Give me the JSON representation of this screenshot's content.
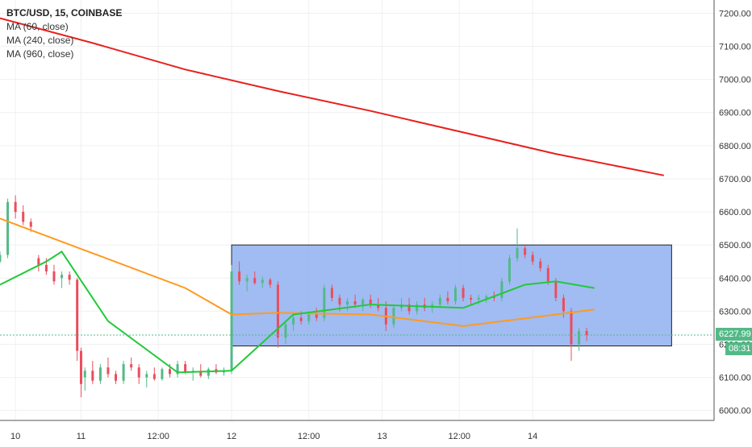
{
  "legend": {
    "symbol": "BTC/USD, 15, COINBASE",
    "ma60": "MA (60, close)",
    "ma240": "MA (240, close)",
    "ma960": "MA (960, close)"
  },
  "last_price": {
    "value": "6227.99",
    "timer": "08:31"
  },
  "colors": {
    "up": "#53b987",
    "down": "#eb4d5c",
    "ma60": "#22c93a",
    "ma240": "#ff9a1f",
    "ma960": "#e8201d",
    "range_box_fill": "#8fb0f0",
    "range_box_stroke": "#222222",
    "last_price_line": "#53b987"
  },
  "chart_data": {
    "type": "candlestick",
    "ylim": [
      5970,
      7240
    ],
    "y_ticks": [
      "6000.00",
      "6100.00",
      "6200.00",
      "6300.00",
      "6400.00",
      "6500.00",
      "6600.00",
      "6700.00",
      "6800.00",
      "6900.00",
      "7000.00",
      "7100.00",
      "7200.00"
    ],
    "x_ticks": [
      "10",
      "11",
      "12:00",
      "12",
      "12:00",
      "13",
      "12:00",
      "14"
    ],
    "ma960": [
      [
        0,
        7185
      ],
      [
        24,
        7110
      ],
      [
        48,
        7030
      ],
      [
        72,
        6965
      ],
      [
        96,
        6905
      ],
      [
        120,
        6840
      ],
      [
        144,
        6775
      ],
      [
        172,
        6710
      ]
    ],
    "ma240": [
      [
        0,
        6580
      ],
      [
        24,
        6475
      ],
      [
        48,
        6370
      ],
      [
        60,
        6290
      ],
      [
        72,
        6295
      ],
      [
        96,
        6290
      ],
      [
        120,
        6255
      ],
      [
        144,
        6290
      ],
      [
        154,
        6305
      ]
    ],
    "ma60": [
      [
        0,
        6380
      ],
      [
        12,
        6450
      ],
      [
        16,
        6480
      ],
      [
        28,
        6270
      ],
      [
        46,
        6115
      ],
      [
        60,
        6120
      ],
      [
        76,
        6290
      ],
      [
        96,
        6320
      ],
      [
        120,
        6310
      ],
      [
        136,
        6380
      ],
      [
        144,
        6390
      ],
      [
        154,
        6370
      ]
    ],
    "candles": [
      [
        0,
        6450,
        6480,
        6445,
        6470
      ],
      [
        2,
        6470,
        6640,
        6460,
        6630
      ],
      [
        4,
        6630,
        6650,
        6580,
        6600
      ],
      [
        6,
        6600,
        6620,
        6560,
        6570
      ],
      [
        8,
        6570,
        6580,
        6540,
        6555
      ],
      [
        10,
        6460,
        6470,
        6420,
        6440
      ],
      [
        12,
        6440,
        6460,
        6410,
        6420
      ],
      [
        14,
        6420,
        6440,
        6380,
        6390
      ],
      [
        16,
        6400,
        6420,
        6370,
        6410
      ],
      [
        18,
        6410,
        6420,
        6380,
        6395
      ],
      [
        20,
        6395,
        6400,
        6150,
        6180
      ],
      [
        21,
        6180,
        6190,
        6040,
        6080
      ],
      [
        22,
        6100,
        6130,
        6060,
        6120
      ],
      [
        24,
        6120,
        6150,
        6080,
        6090
      ],
      [
        26,
        6090,
        6140,
        6080,
        6130
      ],
      [
        28,
        6130,
        6160,
        6100,
        6110
      ],
      [
        30,
        6110,
        6120,
        6080,
        6090
      ],
      [
        32,
        6090,
        6150,
        6080,
        6140
      ],
      [
        34,
        6140,
        6160,
        6120,
        6130
      ],
      [
        36,
        6130,
        6140,
        6080,
        6100
      ],
      [
        38,
        6100,
        6120,
        6070,
        6110
      ],
      [
        40,
        6110,
        6130,
        6090,
        6095
      ],
      [
        42,
        6095,
        6130,
        6090,
        6125
      ],
      [
        44,
        6125,
        6140,
        6100,
        6110
      ],
      [
        46,
        6110,
        6150,
        6100,
        6140
      ],
      [
        48,
        6140,
        6150,
        6110,
        6115
      ],
      [
        50,
        6115,
        6130,
        6090,
        6120
      ],
      [
        52,
        6120,
        6140,
        6100,
        6105
      ],
      [
        54,
        6105,
        6130,
        6095,
        6125
      ],
      [
        56,
        6125,
        6140,
        6110,
        6115
      ],
      [
        58,
        6115,
        6130,
        6105,
        6120
      ],
      [
        60,
        6120,
        6440,
        6110,
        6420
      ],
      [
        62,
        6420,
        6450,
        6380,
        6390
      ],
      [
        64,
        6390,
        6410,
        6360,
        6400
      ],
      [
        66,
        6400,
        6420,
        6380,
        6385
      ],
      [
        68,
        6385,
        6405,
        6370,
        6395
      ],
      [
        70,
        6395,
        6400,
        6370,
        6380
      ],
      [
        72,
        6380,
        6390,
        6190,
        6220
      ],
      [
        74,
        6220,
        6270,
        6200,
        6260
      ],
      [
        76,
        6260,
        6290,
        6240,
        6280
      ],
      [
        78,
        6280,
        6300,
        6260,
        6270
      ],
      [
        80,
        6270,
        6300,
        6260,
        6290
      ],
      [
        82,
        6290,
        6310,
        6270,
        6280
      ],
      [
        84,
        6280,
        6380,
        6270,
        6370
      ],
      [
        86,
        6370,
        6380,
        6330,
        6340
      ],
      [
        88,
        6340,
        6350,
        6300,
        6320
      ],
      [
        90,
        6320,
        6340,
        6300,
        6330
      ],
      [
        92,
        6330,
        6350,
        6310,
        6320
      ],
      [
        94,
        6320,
        6340,
        6300,
        6335
      ],
      [
        96,
        6335,
        6350,
        6310,
        6320
      ],
      [
        98,
        6320,
        6340,
        6300,
        6310
      ],
      [
        100,
        6310,
        6330,
        6240,
        6260
      ],
      [
        102,
        6260,
        6320,
        6250,
        6310
      ],
      [
        104,
        6310,
        6340,
        6300,
        6320
      ],
      [
        106,
        6320,
        6340,
        6290,
        6300
      ],
      [
        108,
        6300,
        6330,
        6290,
        6320
      ],
      [
        110,
        6320,
        6340,
        6300,
        6310
      ],
      [
        112,
        6310,
        6330,
        6295,
        6320
      ],
      [
        114,
        6320,
        6350,
        6310,
        6340
      ],
      [
        116,
        6340,
        6360,
        6320,
        6330
      ],
      [
        118,
        6330,
        6380,
        6320,
        6370
      ],
      [
        120,
        6370,
        6380,
        6330,
        6340
      ],
      [
        122,
        6340,
        6350,
        6320,
        6335
      ],
      [
        124,
        6335,
        6350,
        6320,
        6340
      ],
      [
        126,
        6340,
        6350,
        6325,
        6345
      ],
      [
        128,
        6345,
        6360,
        6330,
        6340
      ],
      [
        130,
        6340,
        6400,
        6330,
        6390
      ],
      [
        132,
        6390,
        6470,
        6380,
        6460
      ],
      [
        134,
        6460,
        6550,
        6450,
        6490
      ],
      [
        136,
        6490,
        6500,
        6460,
        6470
      ],
      [
        138,
        6470,
        6480,
        6440,
        6450
      ],
      [
        140,
        6450,
        6460,
        6420,
        6430
      ],
      [
        142,
        6430,
        6440,
        6380,
        6390
      ],
      [
        144,
        6390,
        6400,
        6330,
        6340
      ],
      [
        146,
        6340,
        6350,
        6280,
        6300
      ],
      [
        148,
        6300,
        6310,
        6150,
        6200
      ],
      [
        150,
        6200,
        6250,
        6180,
        6240
      ],
      [
        152,
        6240,
        6250,
        6210,
        6228
      ]
    ],
    "range_box": {
      "x0": 60,
      "x1": 174,
      "y0": 6195,
      "y1": 6500
    },
    "last_price": 6227.99
  }
}
